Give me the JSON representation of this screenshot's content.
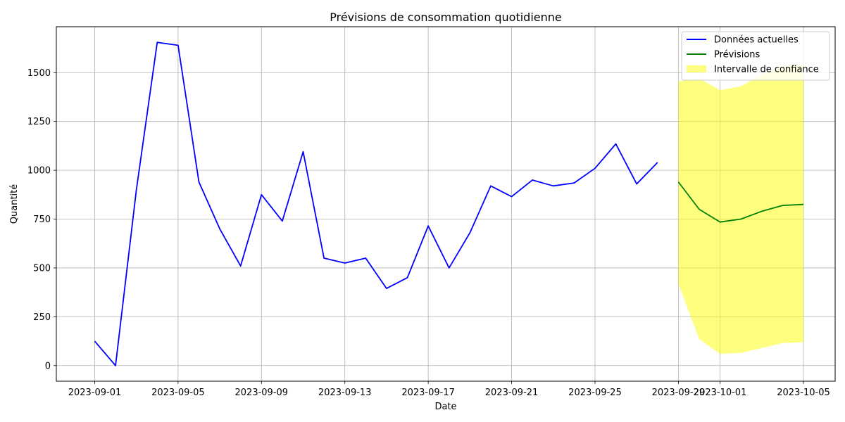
{
  "chart_data": {
    "type": "line",
    "title": "Prévisions de consommation quotidienne",
    "xlabel": "Date",
    "ylabel": "Quantité",
    "x_range": [
      "2023-08-30",
      "2023-10-07"
    ],
    "ylim": [
      -80,
      1735
    ],
    "x_ticks": [
      "2023-09-01",
      "2023-09-05",
      "2023-09-09",
      "2023-09-13",
      "2023-09-17",
      "2023-09-21",
      "2023-09-25",
      "2023-09-29",
      "2023-10-01",
      "2023-10-05"
    ],
    "y_ticks": [
      0,
      250,
      500,
      750,
      1000,
      1250,
      1500
    ],
    "grid": true,
    "legend_position": "top-right",
    "series": [
      {
        "name": "Données actuelles",
        "color": "#0000ff",
        "x": [
          "2023-09-01",
          "2023-09-02",
          "2023-09-03",
          "2023-09-04",
          "2023-09-05",
          "2023-09-06",
          "2023-09-07",
          "2023-09-08",
          "2023-09-09",
          "2023-09-10",
          "2023-09-11",
          "2023-09-12",
          "2023-09-13",
          "2023-09-14",
          "2023-09-15",
          "2023-09-16",
          "2023-09-17",
          "2023-09-18",
          "2023-09-19",
          "2023-09-20",
          "2023-09-21",
          "2023-09-22",
          "2023-09-23",
          "2023-09-24",
          "2023-09-25",
          "2023-09-26",
          "2023-09-27",
          "2023-09-28"
        ],
        "values": [
          125,
          0,
          900,
          1655,
          1640,
          940,
          700,
          510,
          875,
          740,
          1095,
          550,
          525,
          550,
          395,
          450,
          715,
          500,
          680,
          920,
          865,
          950,
          920,
          935,
          1010,
          1135,
          930,
          1040
        ]
      },
      {
        "name": "Prévisions",
        "color": "#008000",
        "x": [
          "2023-09-29",
          "2023-09-30",
          "2023-10-01",
          "2023-10-02",
          "2023-10-03",
          "2023-10-04",
          "2023-10-05"
        ],
        "values": [
          940,
          800,
          735,
          750,
          790,
          820,
          825
        ]
      }
    ],
    "confidence_interval": {
      "name": "Intervalle de confiance",
      "color": "#ffff00",
      "x": [
        "2023-09-29",
        "2023-09-30",
        "2023-10-01",
        "2023-10-02",
        "2023-10-03",
        "2023-10-04",
        "2023-10-05"
      ],
      "lower": [
        420,
        135,
        60,
        65,
        90,
        115,
        120
      ],
      "upper": [
        1455,
        1470,
        1410,
        1430,
        1490,
        1530,
        1545
      ]
    }
  }
}
